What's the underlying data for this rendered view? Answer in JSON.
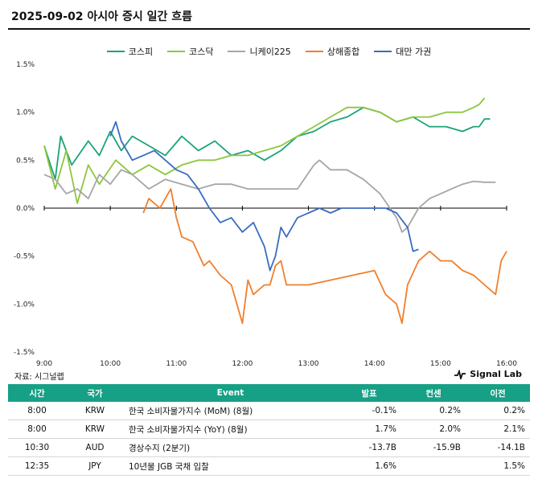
{
  "title": "2025-09-02 아시아 증시 일간 흐름",
  "source_label": "자료: 시그널랩",
  "brand": "Signal Lab",
  "chart_data": {
    "type": "line",
    "xlabel": "",
    "ylabel": "",
    "x_ticks": [
      "9:00",
      "10:00",
      "11:00",
      "12:00",
      "13:00",
      "14:00",
      "15:00",
      "16:00"
    ],
    "y_ticks": [
      "1.5%",
      "1.0%",
      "0.5%",
      "0.0%",
      "-0.5%",
      "-1.0%",
      "-1.5%"
    ],
    "ylim": [
      -1.5,
      1.5
    ],
    "xlim": [
      "9:00",
      "16:00"
    ],
    "legend_position": "top-center",
    "grid": false,
    "series": [
      {
        "name": "코스피",
        "color": "#1aa37a",
        "x": [
          "9:00",
          "9:10",
          "9:15",
          "9:25",
          "9:40",
          "9:50",
          "10:00",
          "10:10",
          "10:20",
          "10:35",
          "10:50",
          "11:05",
          "11:20",
          "11:35",
          "11:50",
          "12:05",
          "12:20",
          "12:35",
          "12:50",
          "13:05",
          "13:20",
          "13:35",
          "13:50",
          "14:05",
          "14:20",
          "14:35",
          "14:50",
          "15:05",
          "15:20",
          "15:30",
          "15:35",
          "15:40",
          "15:45"
        ],
        "values": [
          0.65,
          0.3,
          0.75,
          0.45,
          0.7,
          0.55,
          0.8,
          0.6,
          0.75,
          0.65,
          0.55,
          0.75,
          0.6,
          0.7,
          0.55,
          0.6,
          0.5,
          0.6,
          0.75,
          0.8,
          0.9,
          0.95,
          1.05,
          1.0,
          0.9,
          0.95,
          0.85,
          0.85,
          0.8,
          0.85,
          0.85,
          0.93,
          0.93
        ]
      },
      {
        "name": "코스닥",
        "color": "#8dc63f",
        "x": [
          "9:00",
          "9:10",
          "9:20",
          "9:30",
          "9:40",
          "9:50",
          "10:05",
          "10:20",
          "10:35",
          "10:50",
          "11:05",
          "11:20",
          "11:35",
          "11:50",
          "12:05",
          "12:20",
          "12:35",
          "12:50",
          "13:05",
          "13:20",
          "13:35",
          "13:50",
          "14:05",
          "14:20",
          "14:35",
          "14:50",
          "15:05",
          "15:20",
          "15:30",
          "15:35",
          "15:40"
        ],
        "values": [
          0.65,
          0.2,
          0.6,
          0.05,
          0.45,
          0.25,
          0.5,
          0.35,
          0.45,
          0.35,
          0.45,
          0.5,
          0.5,
          0.55,
          0.55,
          0.6,
          0.65,
          0.75,
          0.85,
          0.95,
          1.05,
          1.05,
          1.0,
          0.9,
          0.95,
          0.95,
          1.0,
          1.0,
          1.05,
          1.08,
          1.15
        ]
      },
      {
        "name": "니케이225",
        "color": "#a6a6a6",
        "x": [
          "9:00",
          "9:10",
          "9:20",
          "9:30",
          "9:40",
          "9:50",
          "10:00",
          "10:10",
          "10:20",
          "10:35",
          "10:50",
          "11:05",
          "11:20",
          "11:35",
          "11:50",
          "12:05",
          "12:20",
          "12:35",
          "12:50",
          "13:05",
          "13:10",
          "13:20",
          "13:35",
          "13:50",
          "14:05",
          "14:20",
          "14:25",
          "14:30",
          "14:40",
          "14:50",
          "15:00",
          "15:10",
          "15:20",
          "15:30",
          "15:40",
          "15:50"
        ],
        "values": [
          0.35,
          0.3,
          0.15,
          0.2,
          0.1,
          0.35,
          0.25,
          0.4,
          0.35,
          0.2,
          0.3,
          0.25,
          0.2,
          0.25,
          0.25,
          0.2,
          0.2,
          0.2,
          0.2,
          0.45,
          0.5,
          0.4,
          0.4,
          0.3,
          0.15,
          -0.1,
          -0.25,
          -0.2,
          0.0,
          0.1,
          0.15,
          0.2,
          0.25,
          0.28,
          0.27,
          0.27
        ]
      },
      {
        "name": "상해종합",
        "color": "#f07f2d",
        "x": [
          "10:30",
          "10:35",
          "10:45",
          "10:55",
          "11:00",
          "11:05",
          "11:15",
          "11:25",
          "11:30",
          "11:40",
          "11:50",
          "12:00",
          "12:05",
          "12:10",
          "12:20",
          "12:25",
          "12:30",
          "12:35",
          "12:40",
          "13:00",
          "14:00",
          "14:10",
          "14:20",
          "14:25",
          "14:30",
          "14:40",
          "14:50",
          "15:00",
          "15:10",
          "15:20",
          "15:30",
          "15:40",
          "15:50",
          "15:55",
          "16:00"
        ],
        "values": [
          -0.05,
          0.1,
          0.0,
          0.2,
          -0.1,
          -0.3,
          -0.35,
          -0.6,
          -0.55,
          -0.7,
          -0.8,
          -1.2,
          -0.75,
          -0.9,
          -0.8,
          -0.8,
          -0.6,
          -0.55,
          -0.8,
          -0.8,
          -0.65,
          -0.9,
          -1.0,
          -1.2,
          -0.8,
          -0.55,
          -0.45,
          -0.55,
          -0.55,
          -0.65,
          -0.7,
          -0.8,
          -0.9,
          -0.55,
          -0.45
        ]
      },
      {
        "name": "대만 가권",
        "color": "#3a6cc1",
        "x": [
          "10:00",
          "10:05",
          "10:10",
          "10:20",
          "10:30",
          "10:40",
          "10:50",
          "11:00",
          "11:10",
          "11:20",
          "11:30",
          "11:40",
          "11:50",
          "12:00",
          "12:10",
          "12:20",
          "12:25",
          "12:30",
          "12:35",
          "12:40",
          "12:50",
          "13:00",
          "13:10",
          "13:20",
          "13:30",
          "13:40",
          "13:50",
          "14:00",
          "14:10",
          "14:20",
          "14:30",
          "14:35",
          "14:40"
        ],
        "values": [
          0.75,
          0.9,
          0.7,
          0.5,
          0.55,
          0.6,
          0.5,
          0.4,
          0.35,
          0.2,
          0.0,
          -0.15,
          -0.1,
          -0.25,
          -0.15,
          -0.4,
          -0.65,
          -0.5,
          -0.2,
          -0.3,
          -0.1,
          -0.05,
          0.0,
          -0.05,
          0.0,
          0.0,
          0.0,
          0.0,
          0.0,
          -0.05,
          -0.2,
          -0.45,
          -0.43
        ]
      }
    ]
  },
  "table": {
    "headers": [
      "시간",
      "국가",
      "Event",
      "발표",
      "컨센",
      "이전"
    ],
    "rows": [
      [
        "8:00",
        "KRW",
        "한국 소비자물가지수 (MoM) (8월)",
        "-0.1%",
        "0.2%",
        "0.2%"
      ],
      [
        "8:00",
        "KRW",
        "한국 소비자물가지수 (YoY) (8월)",
        "1.7%",
        "2.0%",
        "2.1%"
      ],
      [
        "10:30",
        "AUD",
        "경상수지 (2분기)",
        "-13.7B",
        "-15.9B",
        "-14.1B"
      ],
      [
        "12:35",
        "JPY",
        "10년물 JGB 국채 입찰",
        "1.6%",
        "",
        "1.5%"
      ]
    ]
  }
}
